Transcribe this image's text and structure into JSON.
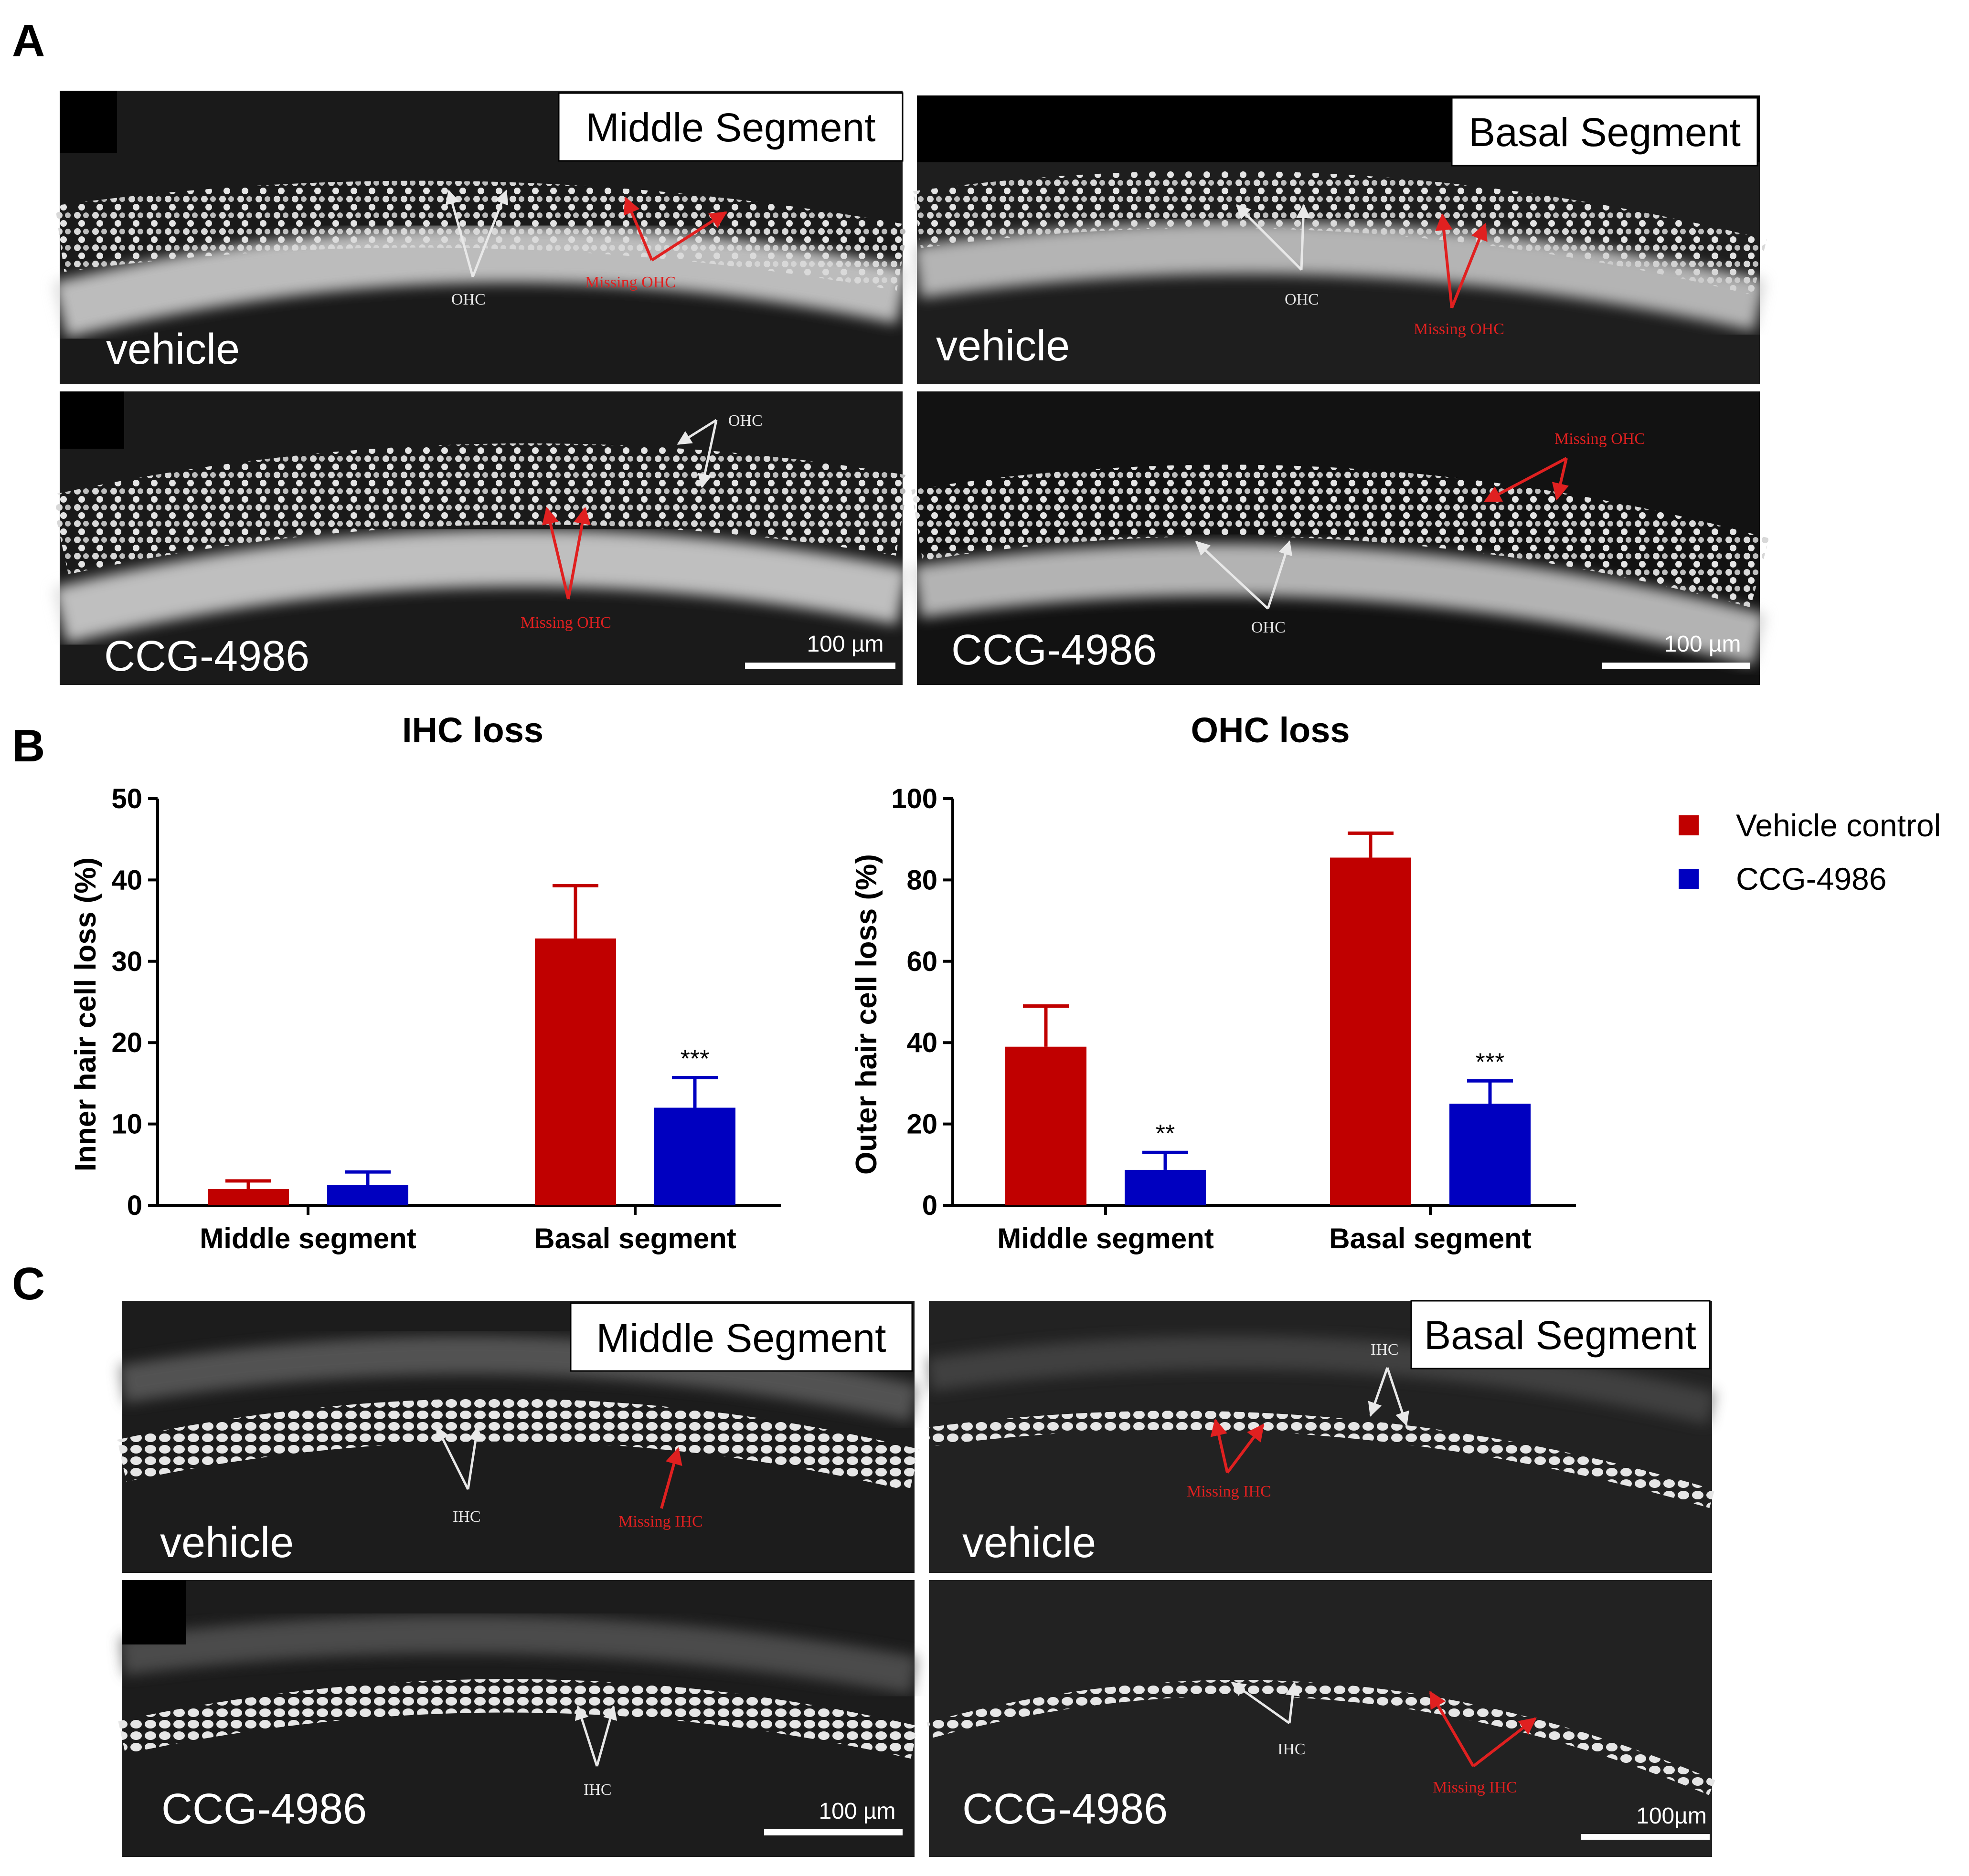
{
  "panels": {
    "a": {
      "letter": "A"
    },
    "b": {
      "letter": "B"
    },
    "c": {
      "letter": "C"
    }
  },
  "micrographs": [
    {
      "id": "a-middle-vehicle",
      "segment_label": "Middle Segment",
      "condition": "vehicle",
      "scale_bar": "",
      "annotations": [
        {
          "text": "OHC",
          "color": "white"
        },
        {
          "text": "Missing OHC",
          "color": "red"
        }
      ]
    },
    {
      "id": "a-basal-vehicle",
      "segment_label": "Basal Segment",
      "condition": "vehicle",
      "scale_bar": "",
      "annotations": [
        {
          "text": "OHC",
          "color": "white"
        },
        {
          "text": "Missing OHC",
          "color": "red"
        }
      ]
    },
    {
      "id": "a-middle-ccg",
      "segment_label": "",
      "condition": "CCG-4986",
      "scale_bar": "100 µm",
      "annotations": [
        {
          "text": "OHC",
          "color": "white"
        },
        {
          "text": "Missing OHC",
          "color": "red"
        }
      ]
    },
    {
      "id": "a-basal-ccg",
      "segment_label": "",
      "condition": "CCG-4986",
      "scale_bar": "100 µm",
      "annotations": [
        {
          "text": "Missing OHC",
          "color": "red"
        },
        {
          "text": "OHC",
          "color": "white"
        }
      ]
    },
    {
      "id": "c-middle-vehicle",
      "segment_label": "Middle Segment",
      "condition": "vehicle",
      "scale_bar": "",
      "annotations": [
        {
          "text": "IHC",
          "color": "white"
        },
        {
          "text": "Missing IHC",
          "color": "red"
        }
      ]
    },
    {
      "id": "c-basal-vehicle",
      "segment_label": "Basal Segment",
      "condition": "vehicle",
      "scale_bar": "",
      "annotations": [
        {
          "text": "IHC",
          "color": "white"
        },
        {
          "text": "Missing IHC",
          "color": "red"
        }
      ]
    },
    {
      "id": "c-middle-ccg",
      "segment_label": "",
      "condition": "CCG-4986",
      "scale_bar": "100 µm",
      "annotations": [
        {
          "text": "IHC",
          "color": "white"
        }
      ]
    },
    {
      "id": "c-basal-ccg",
      "segment_label": "",
      "condition": "CCG-4986",
      "scale_bar": "100µm",
      "annotations": [
        {
          "text": "IHC",
          "color": "white"
        },
        {
          "text": "Missing IHC",
          "color": "red"
        }
      ]
    }
  ],
  "legend": [
    {
      "label": "Vehicle control",
      "color": "#c00000"
    },
    {
      "label": "CCG-4986",
      "color": "#0000c0"
    }
  ],
  "chart_data": [
    {
      "type": "bar",
      "title": "IHC loss",
      "xlabel": "",
      "ylabel": "Inner hair cell loss (%)",
      "ylim": [
        0,
        50
      ],
      "yticks": [
        "0",
        "10",
        "20",
        "30",
        "40",
        "50"
      ],
      "categories": [
        "Middle segment",
        "Basal segment"
      ],
      "series": [
        {
          "name": "Vehicle control",
          "color": "#c00000",
          "values": [
            2,
            32.8
          ],
          "errors": [
            1,
            6.5
          ],
          "significance": [
            "",
            ""
          ]
        },
        {
          "name": "CCG-4986",
          "color": "#0000c0",
          "values": [
            2.5,
            12
          ],
          "errors": [
            1.6,
            3.7
          ],
          "significance": [
            "",
            "***"
          ]
        }
      ]
    },
    {
      "type": "bar",
      "title": "OHC loss",
      "xlabel": "",
      "ylabel": "Outer hair cell loss (%)",
      "ylim": [
        0,
        100
      ],
      "yticks": [
        "0",
        "20",
        "40",
        "60",
        "80",
        "100"
      ],
      "categories": [
        "Middle segment",
        "Basal segment"
      ],
      "series": [
        {
          "name": "Vehicle control",
          "color": "#c00000",
          "values": [
            39,
            85.5
          ],
          "errors": [
            10,
            6
          ],
          "significance": [
            "",
            ""
          ]
        },
        {
          "name": "CCG-4986",
          "color": "#0000c0",
          "values": [
            8.7,
            25
          ],
          "errors": [
            4.3,
            5.6
          ],
          "significance": [
            "**",
            "***"
          ]
        }
      ]
    }
  ]
}
